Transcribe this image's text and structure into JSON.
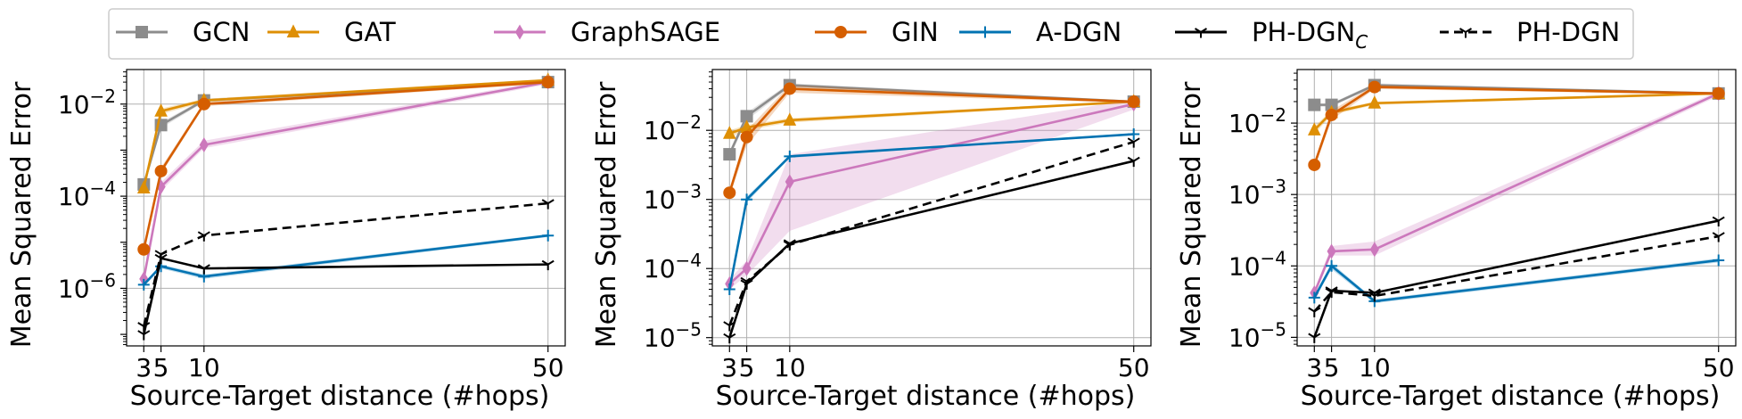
{
  "legend": [
    {
      "name": "GCN",
      "color": "#8c8c8c",
      "marker": "square",
      "dash": "solid"
    },
    {
      "name": "GAT",
      "color": "#de8f05",
      "marker": "triangle",
      "dash": "solid"
    },
    {
      "name": "GraphSAGE",
      "color": "#cc78bc",
      "marker": "diamond",
      "dash": "solid"
    },
    {
      "name": "GIN",
      "color": "#d55e00",
      "marker": "circle",
      "dash": "solid"
    },
    {
      "name": "A-DGN",
      "color": "#0173b2",
      "marker": "plus",
      "dash": "solid"
    },
    {
      "name": "PH-DGN",
      "subscript": "C",
      "color": "#000000",
      "marker": "tri",
      "dash": "solid"
    },
    {
      "name": "PH-DGN",
      "color": "#000000",
      "marker": "tri",
      "dash": "dashed"
    }
  ],
  "chart_data": [
    {
      "type": "line",
      "yscale": "log",
      "xlabel": "Source-Target distance (#hops)",
      "ylabel": "Mean Squared Error",
      "x": [
        3,
        5,
        10,
        50
      ],
      "xticks": [
        "3",
        "5",
        "10",
        "50"
      ],
      "xlim": [
        1,
        52
      ],
      "ylim_log10": [
        -7.25,
        -1.25
      ],
      "yticks": [
        {
          "exp": "-6",
          "v": -6
        },
        {
          "exp": "-4",
          "v": -4
        },
        {
          "exp": "-2",
          "v": -2
        }
      ],
      "series": [
        {
          "name": "GCN",
          "values": [
            0.00018,
            0.0035,
            0.012,
            0.03
          ],
          "band": [
            [
              0.00016,
              0.0002
            ],
            [
              0.003,
              0.004
            ],
            [
              0.011,
              0.013
            ],
            [
              0.029,
              0.031
            ]
          ]
        },
        {
          "name": "GAT",
          "values": [
            0.00015,
            0.007,
            0.012,
            0.033
          ],
          "band": [
            [
              0.00013,
              0.00017
            ],
            [
              0.006,
              0.008
            ],
            [
              0.011,
              0.013
            ],
            [
              0.031,
              0.035
            ]
          ]
        },
        {
          "name": "GraphSAGE",
          "values": [
            1.6e-06,
            0.00016,
            0.0013,
            0.03
          ],
          "band": [
            [
              1.3e-06,
              2e-06
            ],
            [
              0.00013,
              0.0002
            ],
            [
              0.0011,
              0.0016
            ],
            [
              0.027,
              0.033
            ]
          ]
        },
        {
          "name": "GIN",
          "values": [
            7e-06,
            0.00035,
            0.01,
            0.03
          ],
          "band": [
            [
              6e-06,
              8e-06
            ],
            [
              0.0003,
              0.00042
            ],
            [
              0.009,
              0.011
            ],
            [
              0.028,
              0.032
            ]
          ]
        },
        {
          "name": "A-DGN",
          "values": [
            1.2e-06,
            3e-06,
            1.8e-06,
            1.4e-05
          ],
          "band": [
            [
              1.1e-06,
              1.3e-06
            ],
            [
              2.7e-06,
              3.3e-06
            ],
            [
              1.6e-06,
              2e-06
            ],
            [
              1.3e-05,
              1.5e-05
            ]
          ]
        },
        {
          "name": "PH-DGN_C",
          "values": [
            1e-07,
            4.5e-06,
            2.7e-06,
            3.3e-06
          ],
          "band": null
        },
        {
          "name": "PH-DGN",
          "values": [
            1.5e-07,
            5.5e-06,
            1.4e-05,
            7e-05
          ],
          "band": null
        }
      ]
    },
    {
      "type": "line",
      "yscale": "log",
      "xlabel": "Source-Target distance (#hops)",
      "ylabel": "Mean Squared Error",
      "x": [
        3,
        5,
        10,
        50
      ],
      "xticks": [
        "3",
        "5",
        "10",
        "50"
      ],
      "xlim": [
        1,
        52
      ],
      "ylim_log10": [
        -5.12,
        -1.12
      ],
      "yticks": [
        {
          "exp": "-5",
          "v": -5
        },
        {
          "exp": "-4",
          "v": -4
        },
        {
          "exp": "-3",
          "v": -3
        },
        {
          "exp": "-2",
          "v": -2
        }
      ],
      "series": [
        {
          "name": "GCN",
          "values": [
            0.0045,
            0.016,
            0.045,
            0.026
          ],
          "band": [
            [
              0.004,
              0.005
            ],
            [
              0.014,
              0.018
            ],
            [
              0.042,
              0.048
            ],
            [
              0.025,
              0.027
            ]
          ]
        },
        {
          "name": "GAT",
          "values": [
            0.009,
            0.011,
            0.014,
            0.026
          ],
          "band": [
            [
              0.008,
              0.01
            ],
            [
              0.01,
              0.012
            ],
            [
              0.013,
              0.015
            ],
            [
              0.025,
              0.027
            ]
          ]
        },
        {
          "name": "GraphSAGE",
          "values": [
            6e-05,
            0.0001,
            0.0018,
            0.024
          ],
          "band": [
            [
              5e-05,
              7e-05
            ],
            [
              8e-05,
              0.00013
            ],
            [
              0.00035,
              0.0045
            ],
            [
              0.02,
              0.028
            ]
          ]
        },
        {
          "name": "GIN",
          "values": [
            0.00125,
            0.008,
            0.04,
            0.026
          ],
          "band": [
            [
              0.0011,
              0.0014
            ],
            [
              0.006,
              0.01
            ],
            [
              0.035,
              0.045
            ],
            [
              0.025,
              0.027
            ]
          ]
        },
        {
          "name": "A-DGN",
          "values": [
            5e-05,
            0.001,
            0.0042,
            0.0088
          ],
          "band": [
            [
              4.5e-05,
              5.5e-05
            ],
            [
              0.0009,
              0.0011
            ],
            [
              0.004,
              0.0044
            ],
            [
              0.0085,
              0.0091
            ]
          ]
        },
        {
          "name": "PH-DGN_C",
          "values": [
            1e-05,
            6e-05,
            0.00023,
            0.0036
          ],
          "band": null
        },
        {
          "name": "PH-DGN",
          "values": [
            1.5e-05,
            6.5e-05,
            0.00022,
            0.0068
          ],
          "band": null
        }
      ]
    },
    {
      "type": "line",
      "yscale": "log",
      "xlabel": "Source-Target distance (#hops)",
      "ylabel": "Mean Squared Error",
      "x": [
        3,
        5,
        10,
        50
      ],
      "xticks": [
        "3",
        "5",
        "10",
        "50"
      ],
      "xlim": [
        1,
        52
      ],
      "ylim_log10": [
        -5.12,
        -1.25
      ],
      "yticks": [
        {
          "exp": "-5",
          "v": -5
        },
        {
          "exp": "-4",
          "v": -4
        },
        {
          "exp": "-3",
          "v": -3
        },
        {
          "exp": "-2",
          "v": -2
        }
      ],
      "series": [
        {
          "name": "GCN",
          "values": [
            0.018,
            0.018,
            0.034,
            0.026
          ],
          "band": [
            [
              0.017,
              0.019
            ],
            [
              0.017,
              0.019
            ],
            [
              0.032,
              0.036
            ],
            [
              0.025,
              0.027
            ]
          ]
        },
        {
          "name": "GAT",
          "values": [
            0.008,
            0.014,
            0.019,
            0.026
          ],
          "band": [
            [
              0.007,
              0.009
            ],
            [
              0.013,
              0.015
            ],
            [
              0.018,
              0.02
            ],
            [
              0.025,
              0.027
            ]
          ]
        },
        {
          "name": "GraphSAGE",
          "values": [
            4.2e-05,
            0.00016,
            0.00017,
            0.026
          ],
          "band": [
            [
              3.8e-05,
              4.6e-05
            ],
            [
              0.00014,
              0.00019
            ],
            [
              0.00014,
              0.00022
            ],
            [
              0.024,
              0.028
            ]
          ]
        },
        {
          "name": "GIN",
          "values": [
            0.0026,
            0.013,
            0.032,
            0.026
          ],
          "band": [
            [
              0.0023,
              0.0029
            ],
            [
              0.011,
              0.015
            ],
            [
              0.03,
              0.034
            ],
            [
              0.025,
              0.027
            ]
          ]
        },
        {
          "name": "A-DGN",
          "values": [
            3.6e-05,
            0.0001,
            3.2e-05,
            0.00012
          ],
          "band": [
            [
              3.3e-05,
              3.9e-05
            ],
            [
              9e-05,
              0.00011
            ],
            [
              3e-05,
              3.4e-05
            ],
            [
              0.000112,
              0.000128
            ]
          ]
        },
        {
          "name": "PH-DGN_C",
          "values": [
            1e-05,
            4.5e-05,
            4.2e-05,
            0.00043
          ],
          "band": null
        },
        {
          "name": "PH-DGN",
          "values": [
            2.3e-05,
            4.3e-05,
            3.8e-05,
            0.00026
          ],
          "band": null
        }
      ]
    }
  ]
}
